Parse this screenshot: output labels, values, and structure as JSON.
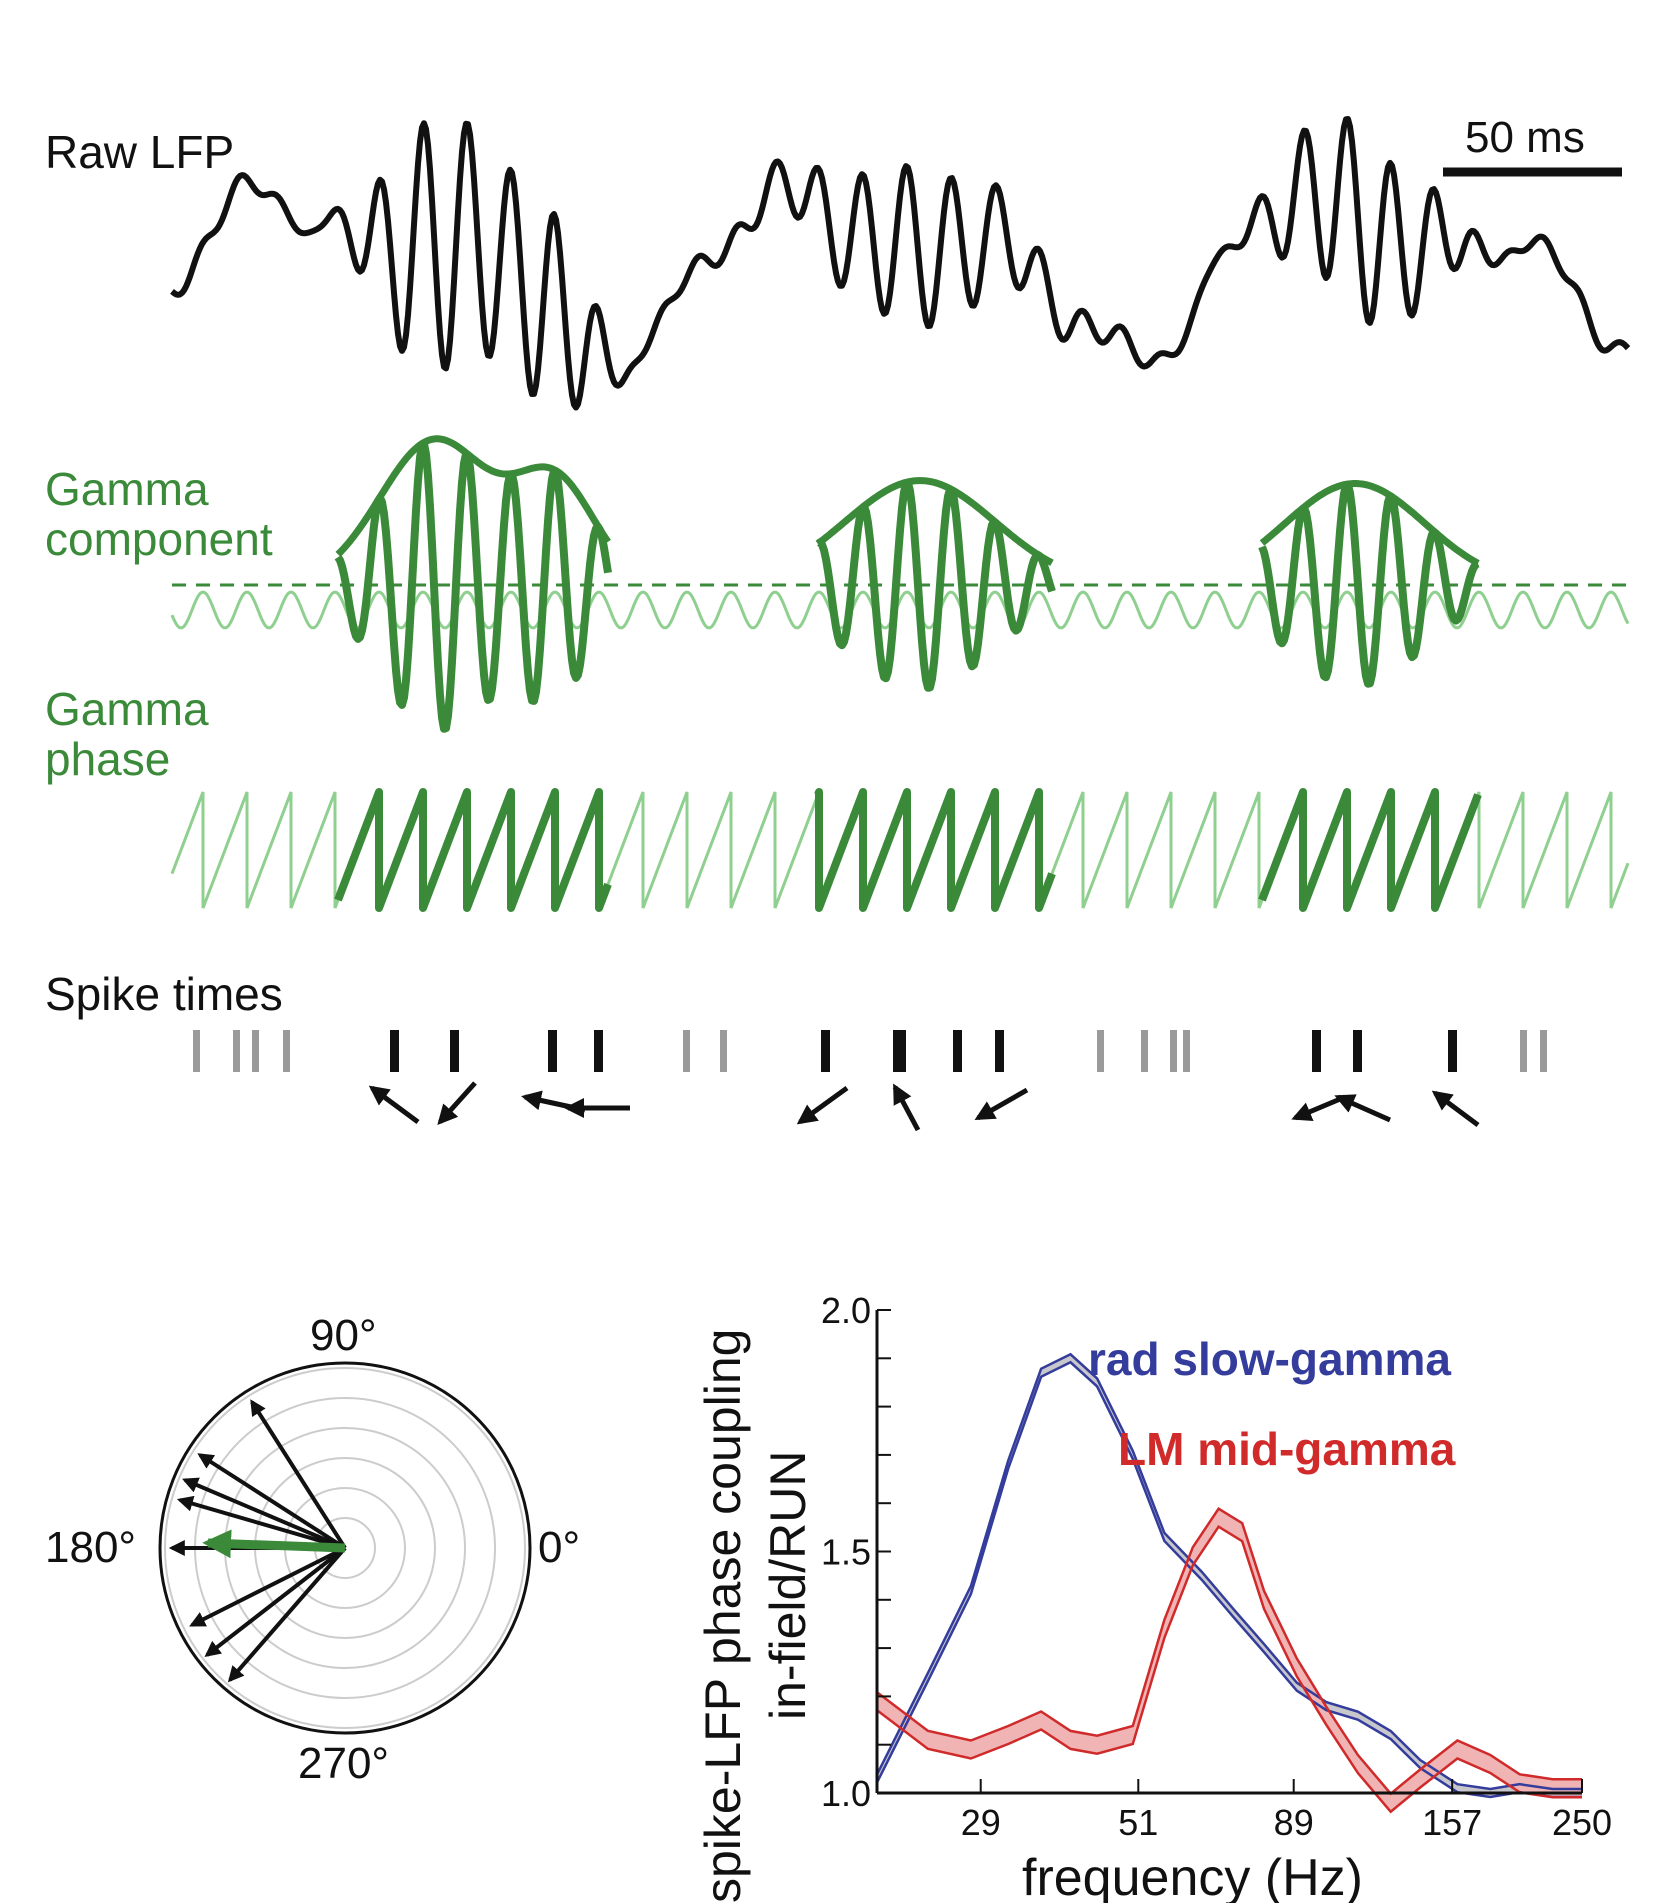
{
  "colors": {
    "black": "#111111",
    "green": "#3a8a3a",
    "green_light": "#8fcf8f",
    "gray": "#9a9a9a",
    "blue": "#343c9c",
    "red": "#d02a2a"
  },
  "labels": {
    "raw_lfp": "Raw LFP",
    "scale_bar": "50 ms",
    "gamma_component_1": "Gamma",
    "gamma_component_2": "component",
    "gamma_phase_1": "Gamma",
    "gamma_phase_2": "phase",
    "spike_times": "Spike times"
  },
  "polar": {
    "label_90": "90°",
    "label_180": "180°",
    "label_0": "0°",
    "label_270": "270°"
  },
  "chart_data": {
    "type": "line",
    "x_scale": "log",
    "xlabel": "frequency (Hz)",
    "ylabel_line1": "spike-LFP phase coupling",
    "ylabel_line2": "in-field/RUN",
    "xlim": [
      20,
      250
    ],
    "ylim": [
      1.0,
      2.0
    ],
    "x_ticks": [
      "29",
      "51",
      "89",
      "157",
      "250"
    ],
    "y_ticks": [
      "1.0",
      "1.5",
      "2.0"
    ],
    "series": [
      {
        "name": "rad slow-gamma",
        "x": [
          20,
          24,
          28,
          32,
          36,
          40,
          44,
          50,
          56,
          64,
          72,
          80,
          90,
          100,
          112,
          126,
          140,
          160,
          180,
          200,
          225,
          250
        ],
        "values": [
          1.03,
          1.24,
          1.42,
          1.68,
          1.87,
          1.9,
          1.85,
          1.7,
          1.53,
          1.45,
          1.37,
          1.3,
          1.22,
          1.18,
          1.16,
          1.12,
          1.06,
          1.01,
          1.0,
          1.01,
          1.0,
          1.0
        ]
      },
      {
        "name": "LM mid-gamma",
        "x": [
          20,
          24,
          28,
          32,
          36,
          40,
          44,
          50,
          56,
          62,
          68,
          74,
          80,
          90,
          100,
          112,
          126,
          140,
          160,
          180,
          200,
          225,
          250
        ],
        "values": [
          1.19,
          1.11,
          1.09,
          1.12,
          1.15,
          1.11,
          1.1,
          1.12,
          1.34,
          1.49,
          1.57,
          1.54,
          1.4,
          1.26,
          1.16,
          1.06,
          0.98,
          1.03,
          1.09,
          1.06,
          1.02,
          1.01,
          1.01
        ]
      }
    ]
  }
}
